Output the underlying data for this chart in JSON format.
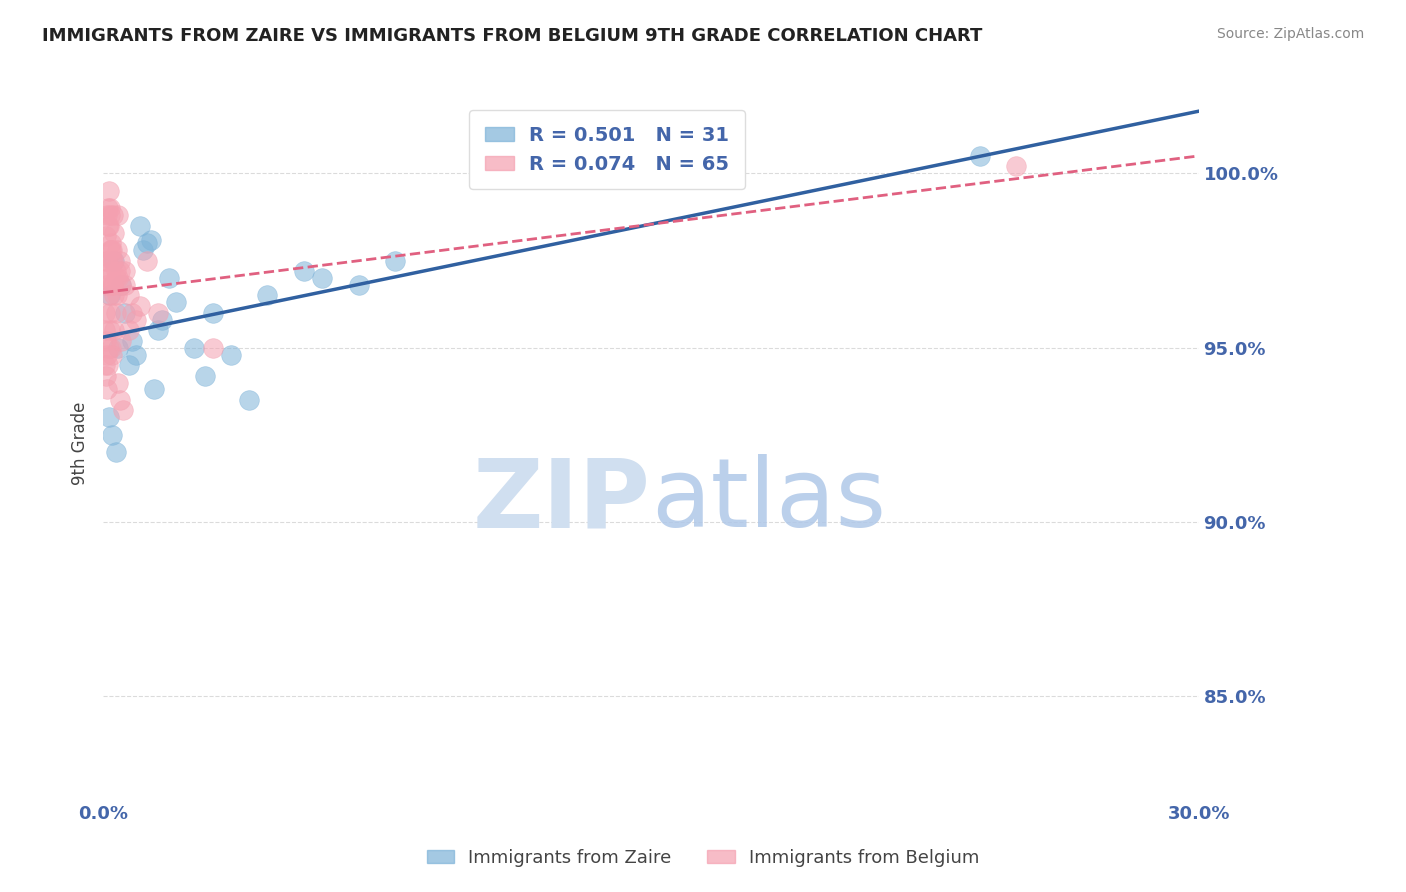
{
  "title": "IMMIGRANTS FROM ZAIRE VS IMMIGRANTS FROM BELGIUM 9TH GRADE CORRELATION CHART",
  "source": "Source: ZipAtlas.com",
  "ylabel": "9th Grade",
  "xlim": [
    0.0,
    30.0
  ],
  "ylim": [
    82.0,
    102.5
  ],
  "yticks": [
    85.0,
    90.0,
    95.0,
    100.0
  ],
  "legend_blue_label": "Immigrants from Zaire",
  "legend_pink_label": "Immigrants from Belgium",
  "R_blue": 0.501,
  "N_blue": 31,
  "R_pink": 0.074,
  "N_pink": 65,
  "blue_color": "#7EB3D8",
  "pink_color": "#F4A0B0",
  "blue_line_color": "#3060A0",
  "pink_line_color": "#E06080",
  "title_color": "#222222",
  "axis_label_color": "#4466AA",
  "background_color": "#FFFFFF",
  "zaire_points": [
    [
      0.5,
      96.8
    ],
    [
      0.8,
      95.2
    ],
    [
      1.0,
      98.5
    ],
    [
      1.1,
      97.8
    ],
    [
      1.3,
      98.1
    ],
    [
      1.5,
      95.5
    ],
    [
      1.8,
      97.0
    ],
    [
      0.3,
      97.5
    ],
    [
      0.6,
      96.0
    ],
    [
      0.9,
      94.8
    ],
    [
      2.0,
      96.3
    ],
    [
      2.5,
      95.0
    ],
    [
      3.0,
      96.0
    ],
    [
      0.4,
      95.0
    ],
    [
      1.2,
      98.0
    ],
    [
      0.7,
      94.5
    ],
    [
      1.6,
      95.8
    ],
    [
      0.2,
      96.5
    ],
    [
      4.5,
      96.5
    ],
    [
      6.0,
      97.0
    ],
    [
      8.0,
      97.5
    ],
    [
      2.8,
      94.2
    ],
    [
      3.5,
      94.8
    ],
    [
      4.0,
      93.5
    ],
    [
      0.15,
      93.0
    ],
    [
      0.25,
      92.5
    ],
    [
      0.35,
      92.0
    ],
    [
      5.5,
      97.2
    ],
    [
      24.0,
      100.5
    ],
    [
      1.4,
      93.8
    ],
    [
      7.0,
      96.8
    ]
  ],
  "belgium_points": [
    [
      0.05,
      97.5
    ],
    [
      0.08,
      98.2
    ],
    [
      0.1,
      98.8
    ],
    [
      0.12,
      99.0
    ],
    [
      0.15,
      98.5
    ],
    [
      0.18,
      97.8
    ],
    [
      0.2,
      97.2
    ],
    [
      0.22,
      98.0
    ],
    [
      0.25,
      96.8
    ],
    [
      0.28,
      97.5
    ],
    [
      0.3,
      98.3
    ],
    [
      0.35,
      97.0
    ],
    [
      0.38,
      96.5
    ],
    [
      0.4,
      98.8
    ],
    [
      0.45,
      97.2
    ],
    [
      0.05,
      96.0
    ],
    [
      0.08,
      96.8
    ],
    [
      0.1,
      97.5
    ],
    [
      0.12,
      97.0
    ],
    [
      0.15,
      96.5
    ],
    [
      0.18,
      96.0
    ],
    [
      0.2,
      95.5
    ],
    [
      0.22,
      95.0
    ],
    [
      0.25,
      94.8
    ],
    [
      0.05,
      95.5
    ],
    [
      0.08,
      95.2
    ],
    [
      0.1,
      94.8
    ],
    [
      0.12,
      98.5
    ],
    [
      0.15,
      99.5
    ],
    [
      0.18,
      99.0
    ],
    [
      0.2,
      98.8
    ],
    [
      0.22,
      97.8
    ],
    [
      0.25,
      97.5
    ],
    [
      0.28,
      96.8
    ],
    [
      0.3,
      96.5
    ],
    [
      0.35,
      96.0
    ],
    [
      0.38,
      97.8
    ],
    [
      0.4,
      97.0
    ],
    [
      0.45,
      97.5
    ],
    [
      0.5,
      96.8
    ],
    [
      0.6,
      97.2
    ],
    [
      0.7,
      96.5
    ],
    [
      0.8,
      96.0
    ],
    [
      0.9,
      95.8
    ],
    [
      1.0,
      96.2
    ],
    [
      0.05,
      94.5
    ],
    [
      0.08,
      94.2
    ],
    [
      0.1,
      93.8
    ],
    [
      0.12,
      94.5
    ],
    [
      0.15,
      95.0
    ],
    [
      0.2,
      97.0
    ],
    [
      0.25,
      97.8
    ],
    [
      0.3,
      95.5
    ],
    [
      0.4,
      94.0
    ],
    [
      0.5,
      95.2
    ],
    [
      0.6,
      96.8
    ],
    [
      0.35,
      97.2
    ],
    [
      1.2,
      97.5
    ],
    [
      0.55,
      93.2
    ],
    [
      0.7,
      95.5
    ],
    [
      1.5,
      96.0
    ],
    [
      0.28,
      98.8
    ],
    [
      3.0,
      95.0
    ],
    [
      25.0,
      100.2
    ],
    [
      0.45,
      93.5
    ]
  ]
}
